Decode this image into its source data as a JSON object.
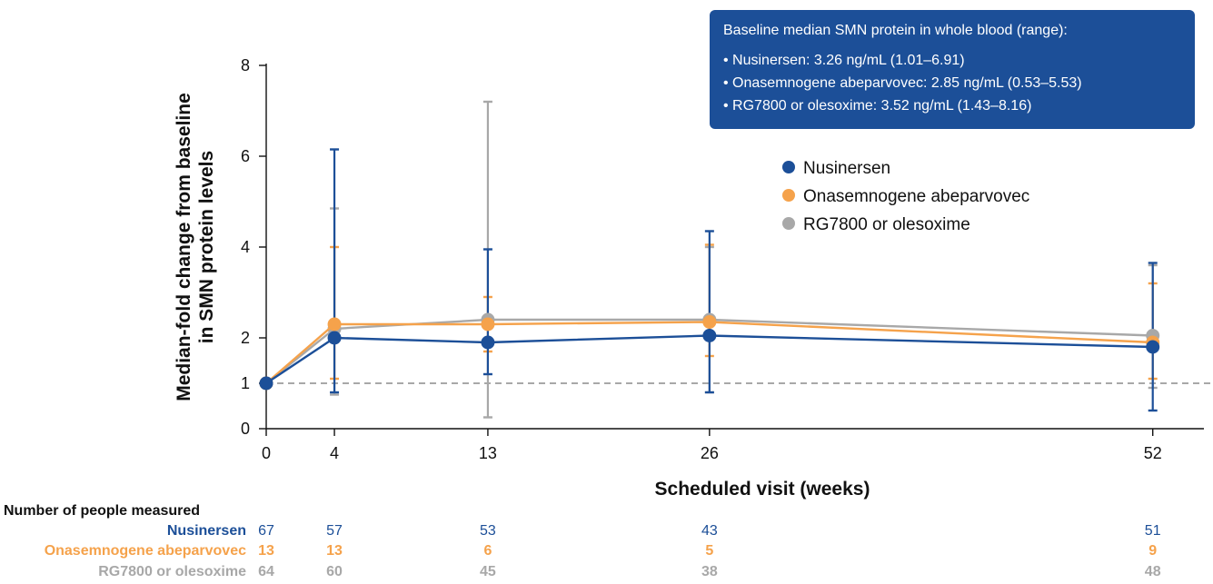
{
  "chart_data": {
    "type": "line",
    "x_ticks": [
      0,
      4,
      13,
      26,
      52
    ],
    "y_ticks": [
      0,
      1,
      2,
      4,
      6,
      8
    ],
    "xlim": [
      0,
      55
    ],
    "ylim": [
      0,
      8
    ],
    "xlabel": "Scheduled visit (weeks)",
    "ylabel": [
      "Median-fold change from baseline",
      "in SMN protein levels"
    ],
    "reference_line": {
      "y": 1,
      "style": "dashed"
    },
    "grid": false,
    "legend_position": "right",
    "series": [
      {
        "name": "Nusinersen",
        "color": "#1c4f98",
        "x": [
          0,
          4,
          13,
          26,
          52
        ],
        "y": [
          1.0,
          2.0,
          1.9,
          2.05,
          1.8
        ],
        "error_low": [
          null,
          0.8,
          1.2,
          0.8,
          0.4
        ],
        "error_high": [
          null,
          6.15,
          3.95,
          4.35,
          3.65
        ]
      },
      {
        "name": "Onasemnogene abeparvovec",
        "color": "#f5a24b",
        "x": [
          0,
          4,
          13,
          26,
          52
        ],
        "y": [
          1.0,
          2.3,
          2.3,
          2.35,
          1.9
        ],
        "error_low": [
          null,
          1.1,
          1.7,
          1.6,
          1.1
        ],
        "error_high": [
          null,
          4.0,
          2.9,
          4.05,
          3.2
        ]
      },
      {
        "name": "RG7800 or olesoxime",
        "color": "#a8a8a8",
        "x": [
          0,
          4,
          13,
          26,
          52
        ],
        "y": [
          1.0,
          2.2,
          2.4,
          2.4,
          2.05
        ],
        "error_low": [
          null,
          0.75,
          0.25,
          0.8,
          0.9
        ],
        "error_high": [
          null,
          4.85,
          7.2,
          4.0,
          3.6
        ]
      }
    ]
  },
  "info_box": {
    "title": "Baseline median SMN protein in whole blood (range):",
    "lines": [
      "• Nusinersen: 3.26 ng/mL (1.01–6.91)",
      "• Onasemnogene abeparvovec: 2.85 ng/mL (0.53–5.53)",
      "• RG7800 or olesoxime: 3.52 ng/mL (1.43–8.16)"
    ],
    "background": "#1c4f98"
  },
  "counts": {
    "title": "Number of people measured",
    "rows": [
      {
        "label": "Nusinersen",
        "color": "#1c4f98",
        "bold_values": false,
        "values": [
          "67",
          "57",
          "53",
          "43",
          "51"
        ]
      },
      {
        "label": "Onasemnogene abeparvovec",
        "color": "#f5a24b",
        "bold_values": true,
        "values": [
          "13",
          "13",
          "6",
          "5",
          "9"
        ]
      },
      {
        "label": "RG7800 or olesoxime",
        "color": "#a8a8a8",
        "bold_values": true,
        "values": [
          "64",
          "60",
          "45",
          "38",
          "48"
        ]
      }
    ]
  }
}
